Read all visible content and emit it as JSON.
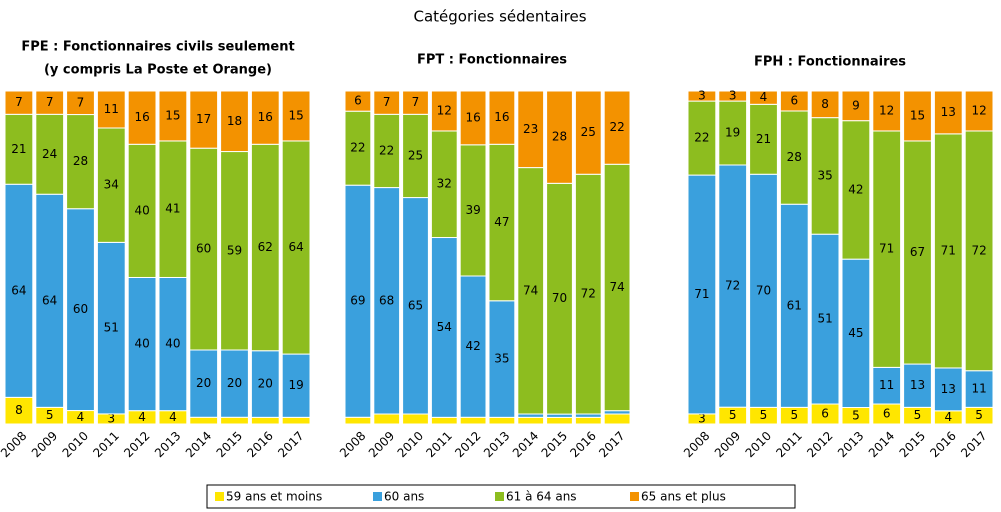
{
  "title": "Catégories sédentaires",
  "legend": [
    {
      "name": "59 ans et moins",
      "color": "#ffe600"
    },
    {
      "name": "60 ans",
      "color": "#3aa0dd"
    },
    {
      "name": "61 à 64 ans",
      "color": "#8dbd1f"
    },
    {
      "name": "65 ans et plus",
      "color": "#f39200"
    }
  ],
  "chart_data": [
    {
      "type": "bar",
      "stacked": true,
      "title": [
        "FPE : Fonctionnaires civils seulement",
        "(y compris La Poste et Orange)"
      ],
      "categories": [
        "2008",
        "2009",
        "2010",
        "2011",
        "2012",
        "2013",
        "2014",
        "2015",
        "2016",
        "2017"
      ],
      "series": [
        {
          "values": [
            8,
            5,
            4,
            3,
            4,
            4,
            2,
            2,
            2,
            2
          ]
        },
        {
          "values": [
            64,
            64,
            60,
            51,
            40,
            40,
            20,
            20,
            20,
            19
          ]
        },
        {
          "values": [
            21,
            24,
            28,
            34,
            40,
            41,
            60,
            59,
            62,
            64
          ]
        },
        {
          "values": [
            7,
            7,
            7,
            11,
            16,
            15,
            17,
            18,
            16,
            15
          ]
        }
      ]
    },
    {
      "type": "bar",
      "stacked": true,
      "title": [
        "FPT : Fonctionnaires"
      ],
      "categories": [
        "2008",
        "2009",
        "2010",
        "2011",
        "2012",
        "2013",
        "2014",
        "2015",
        "2016",
        "2017"
      ],
      "series": [
        {
          "values": [
            2,
            3,
            3,
            2,
            2,
            2,
            2,
            2,
            2,
            3
          ]
        },
        {
          "values": [
            69,
            68,
            65,
            54,
            42,
            35,
            1,
            1,
            1,
            1
          ]
        },
        {
          "values": [
            22,
            22,
            25,
            32,
            39,
            47,
            74,
            70,
            72,
            74
          ]
        },
        {
          "values": [
            6,
            7,
            7,
            12,
            16,
            16,
            23,
            28,
            25,
            22
          ]
        }
      ]
    },
    {
      "type": "bar",
      "stacked": true,
      "title": [
        "FPH : Fonctionnaires"
      ],
      "categories": [
        "2008",
        "2009",
        "2010",
        "2011",
        "2012",
        "2013",
        "2014",
        "2015",
        "2016",
        "2017"
      ],
      "series": [
        {
          "values": [
            3,
            5,
            5,
            5,
            6,
            5,
            6,
            5,
            4,
            5
          ]
        },
        {
          "values": [
            71,
            72,
            70,
            61,
            51,
            45,
            11,
            13,
            13,
            11
          ]
        },
        {
          "values": [
            22,
            19,
            21,
            28,
            35,
            42,
            71,
            67,
            71,
            72
          ]
        },
        {
          "values": [
            3,
            3,
            4,
            6,
            8,
            9,
            12,
            15,
            13,
            12
          ]
        }
      ]
    }
  ]
}
